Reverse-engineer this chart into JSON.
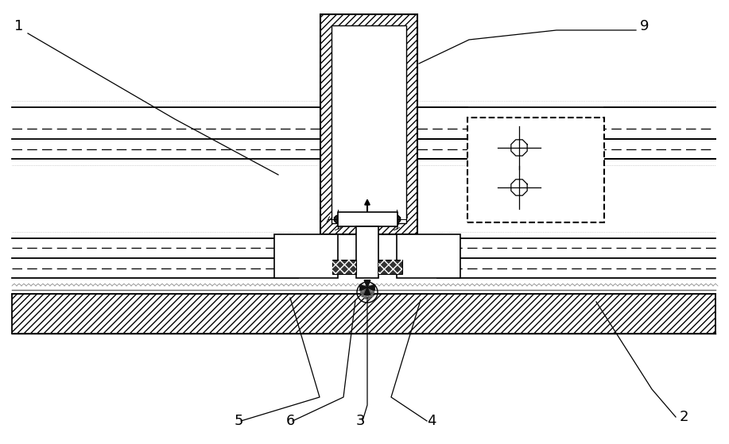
{
  "bg_color": "#ffffff",
  "line_color": "#000000",
  "fig_width": 9.17,
  "fig_height": 5.59,
  "dpi": 100
}
